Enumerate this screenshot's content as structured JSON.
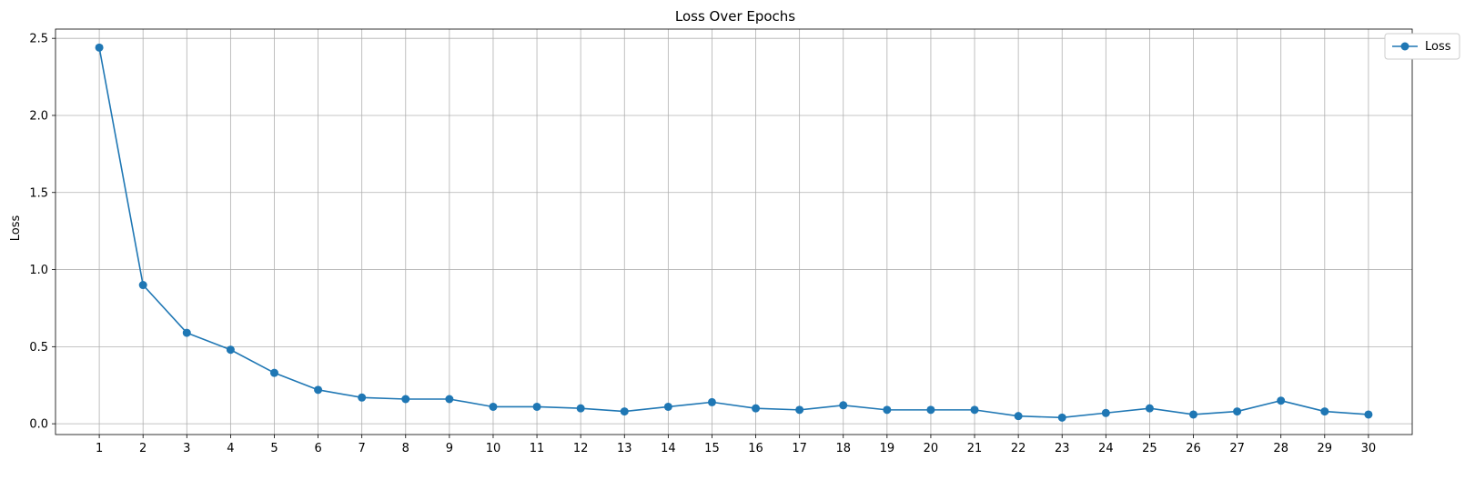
{
  "chart_data": {
    "type": "line",
    "title": "Loss Over Epochs",
    "xlabel": "",
    "ylabel": "Loss",
    "x": [
      1,
      2,
      3,
      4,
      5,
      6,
      7,
      8,
      9,
      10,
      11,
      12,
      13,
      14,
      15,
      16,
      17,
      18,
      19,
      20,
      21,
      22,
      23,
      24,
      25,
      26,
      27,
      28,
      29,
      30
    ],
    "xlim": [
      0,
      31
    ],
    "ylim": [
      -0.07,
      2.56
    ],
    "yticks": [
      0.0,
      0.5,
      1.0,
      1.5,
      2.0,
      2.5
    ],
    "ytick_labels": [
      "0.0",
      "0.5",
      "1.0",
      "1.5",
      "2.0",
      "2.5"
    ],
    "grid": true,
    "legend_position": "top-right",
    "series": [
      {
        "name": "Loss",
        "color": "#1f77b4",
        "marker": "circle",
        "values": [
          2.44,
          0.9,
          0.59,
          0.48,
          0.33,
          0.22,
          0.17,
          0.16,
          0.16,
          0.11,
          0.11,
          0.1,
          0.08,
          0.11,
          0.14,
          0.1,
          0.09,
          0.12,
          0.09,
          0.09,
          0.09,
          0.05,
          0.04,
          0.07,
          0.1,
          0.06,
          0.08,
          0.15,
          0.08,
          0.06
        ]
      }
    ]
  }
}
